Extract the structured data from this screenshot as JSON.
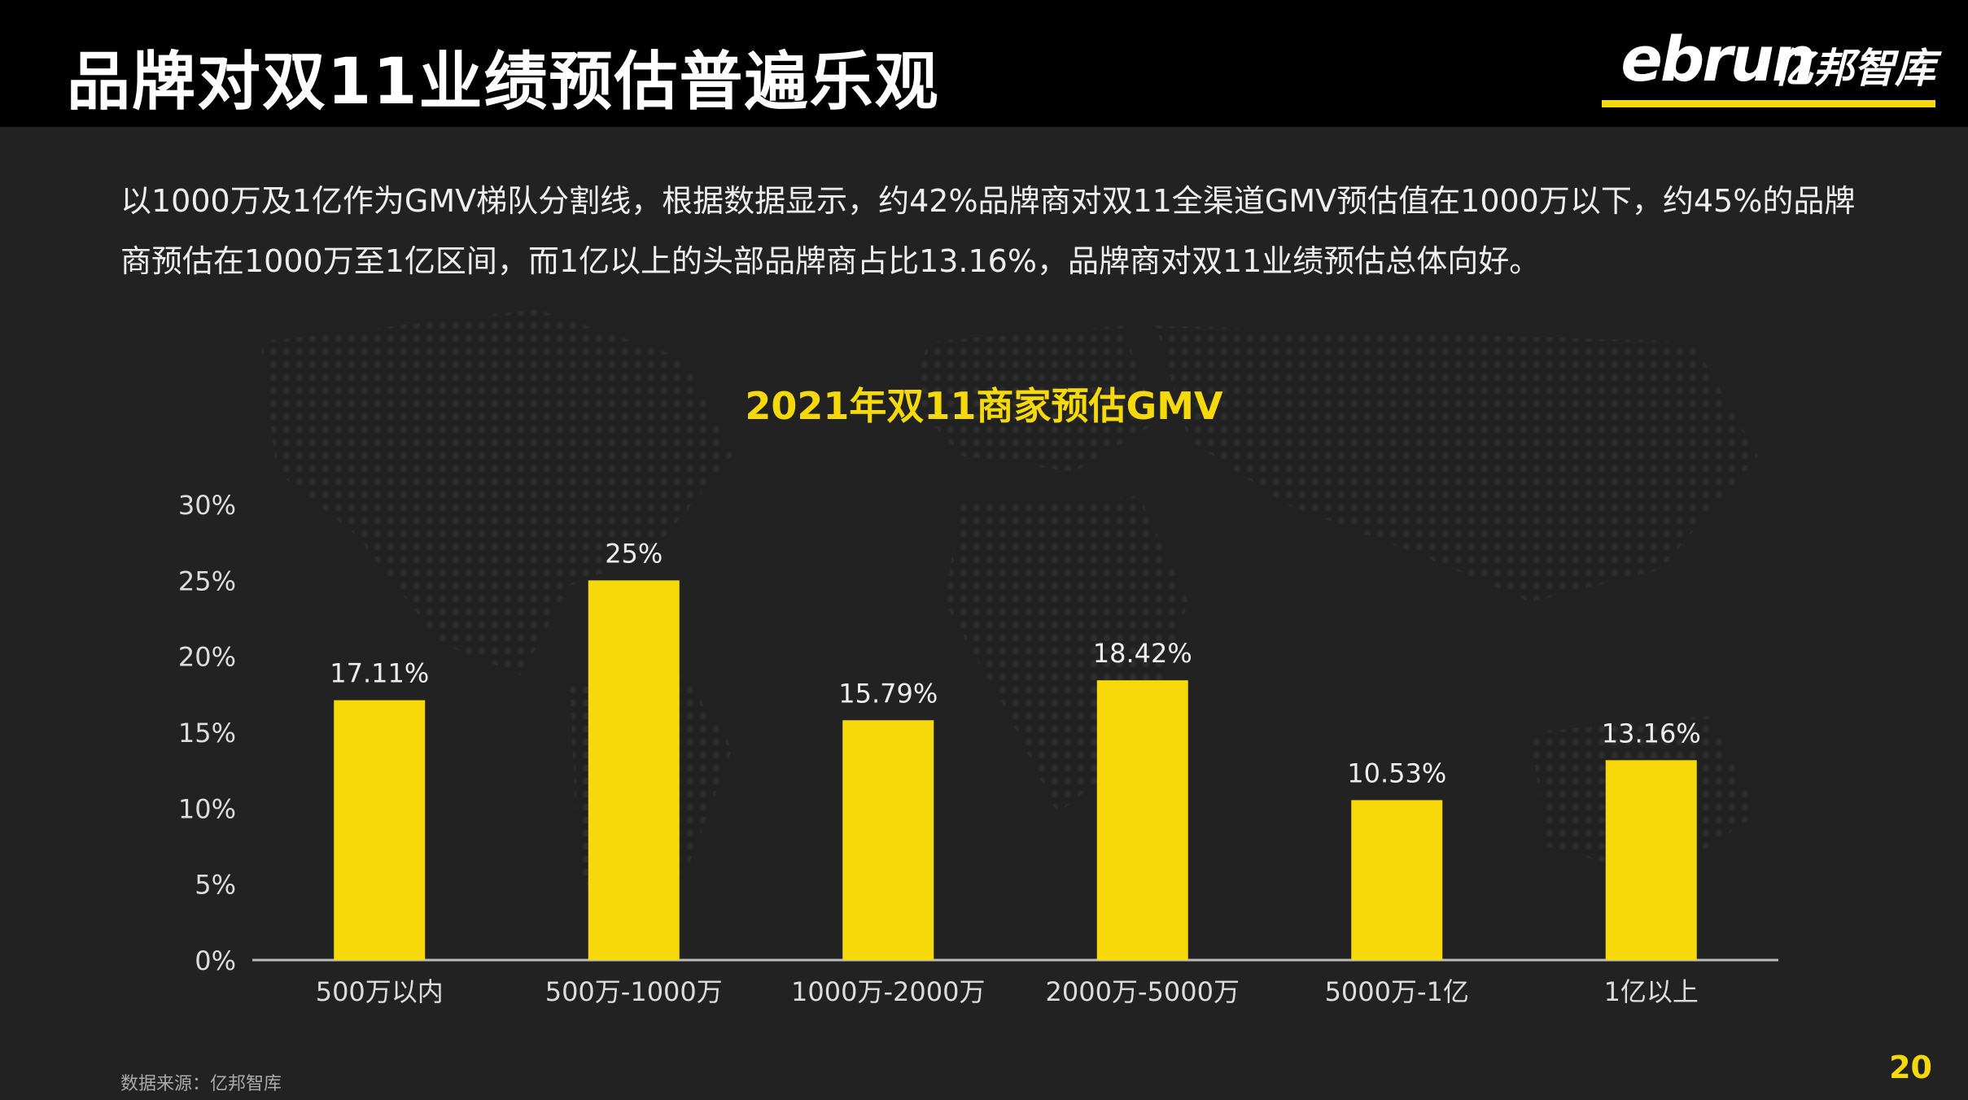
{
  "header": {
    "title": "品牌对双11业绩预估普遍乐观",
    "logo_latin": "ebrun",
    "logo_cn": "亿邦智库"
  },
  "description": "以1000万及1亿作为GMV梯队分割线，根据数据显示，约42%品牌商对双11全渠道GMV预估值在1000万以下，约45%的品牌商预估在1000万至1亿区间，而1亿以上的头部品牌商占比13.16%，品牌商对双11业绩预估总体向好。",
  "colors": {
    "accent": "#f5d90a",
    "background": "#222222",
    "header": "#000000"
  },
  "chart_data": {
    "type": "bar",
    "title": "2021年双11商家预估GMV",
    "categories": [
      "500万以内",
      "500万-1000万",
      "1000万-2000万",
      "2000万-5000万",
      "5000万-1亿",
      "1亿以上"
    ],
    "values": [
      17.11,
      25,
      15.79,
      18.42,
      10.53,
      13.16
    ],
    "value_labels": [
      "17.11%",
      "25%",
      "15.79%",
      "18.42%",
      "10.53%",
      "13.16%"
    ],
    "y_ticks": [
      0,
      5,
      10,
      15,
      20,
      25,
      30
    ],
    "y_tick_labels": [
      "0%",
      "5%",
      "10%",
      "15%",
      "20%",
      "25%",
      "30%"
    ],
    "ylim": [
      0,
      30
    ],
    "grid": false,
    "bar_color": "#f5d90a"
  },
  "footer": {
    "source": "数据来源：亿邦智库",
    "page_number": "20"
  }
}
